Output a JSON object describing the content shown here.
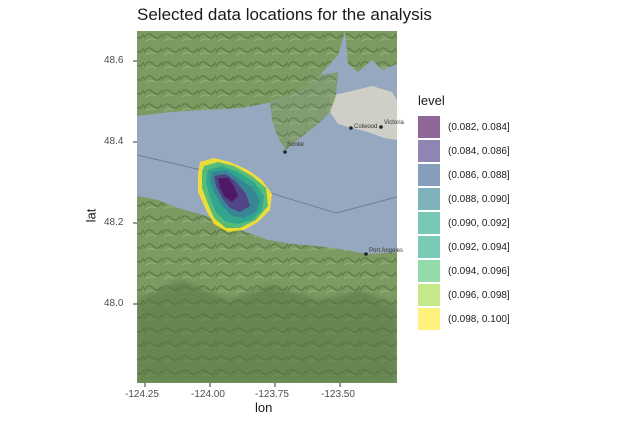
{
  "title": "Selected data locations for the analysis",
  "x_axis": {
    "label": "lon",
    "ticks": [
      "-124.25",
      "-124.00",
      "-123.75",
      "-123.50"
    ]
  },
  "y_axis": {
    "label": "lat",
    "ticks": [
      "48.6",
      "48.4",
      "48.2",
      "48.0"
    ]
  },
  "map": {
    "place_labels": [
      "Sooke",
      "Colwood",
      "Victoria",
      "Port Angeles"
    ],
    "colors": {
      "water": "#95a8bf",
      "land": "#7d9a63",
      "land_dark": "#55743f",
      "urban": "#cfcfc7"
    }
  },
  "legend": {
    "title": "level",
    "items": [
      {
        "label": "(0.082, 0.084]",
        "color": "#440154"
      },
      {
        "label": "(0.084, 0.086]",
        "color": "#46337e"
      },
      {
        "label": "(0.086, 0.088]",
        "color": "#365c8d"
      },
      {
        "label": "(0.088, 0.090]",
        "color": "#277f8e"
      },
      {
        "label": "(0.090, 0.092]",
        "color": "#1fa187"
      },
      {
        "label": "(0.092, 0.094]",
        "color": "#21a685"
      },
      {
        "label": "(0.094, 0.096]",
        "color": "#4ac16d"
      },
      {
        "label": "(0.096, 0.098]",
        "color": "#9fda3a"
      },
      {
        "label": "(0.098, 0.100]",
        "color": "#fde725"
      }
    ]
  }
}
